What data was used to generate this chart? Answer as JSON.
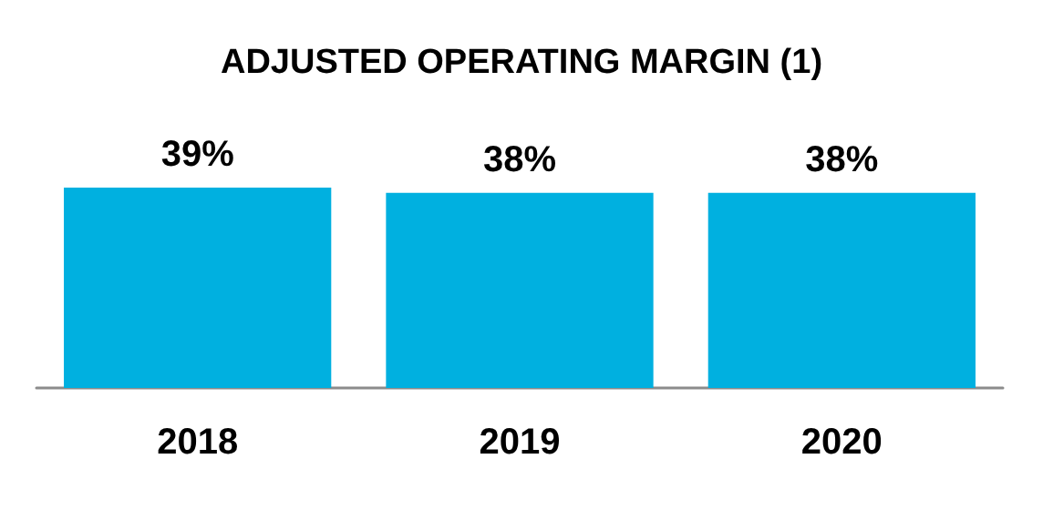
{
  "chart_data": {
    "type": "bar",
    "title": "ADJUSTED OPERATING MARGIN (1)",
    "categories": [
      "2018",
      "2019",
      "2020"
    ],
    "values": [
      39,
      38,
      38
    ],
    "value_labels": [
      "39%",
      "38%",
      "38%"
    ],
    "color": "#00b0e0"
  }
}
